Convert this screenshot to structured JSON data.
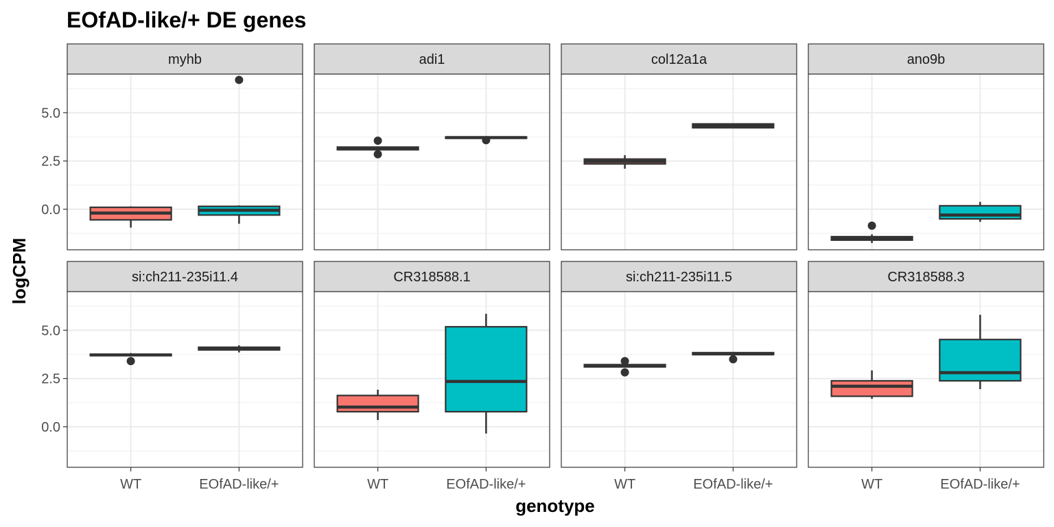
{
  "chart_data": {
    "type": "boxplot",
    "title": "EOfAD-like/+ DE genes",
    "xlabel": "genotype",
    "ylabel": "logCPM",
    "categories": [
      "WT",
      "EOfAD-like/+"
    ],
    "ylim": [
      -2.1,
      7.0
    ],
    "yticks": [
      0.0,
      2.5,
      5.0
    ],
    "ytick_labels": [
      "0.0",
      "2.5",
      "5.0"
    ],
    "grid": true,
    "legend": "none",
    "facet_grid": {
      "rows": 2,
      "cols": 4
    },
    "fill_colors": {
      "WT": "#F8766D",
      "EOfAD-like/+": "#00BFC4"
    },
    "panels": [
      {
        "gene": "myhb",
        "boxes": [
          {
            "group": "WT",
            "lower_whisker": -0.95,
            "q1": -0.55,
            "median": -0.2,
            "q3": 0.1,
            "upper_whisker": 0.15,
            "outliers": []
          },
          {
            "group": "EOfAD-like/+",
            "lower_whisker": -0.75,
            "q1": -0.3,
            "median": -0.05,
            "q3": 0.15,
            "upper_whisker": 0.2,
            "outliers": [
              6.7
            ]
          }
        ]
      },
      {
        "gene": "adi1",
        "boxes": [
          {
            "group": "WT",
            "lower_whisker": 3.05,
            "q1": 3.08,
            "median": 3.15,
            "q3": 3.22,
            "upper_whisker": 3.25,
            "outliers": [
              3.55,
              2.85
            ]
          },
          {
            "group": "EOfAD-like/+",
            "lower_whisker": 3.65,
            "q1": 3.68,
            "median": 3.71,
            "q3": 3.74,
            "upper_whisker": 3.76,
            "outliers": [
              3.58
            ]
          }
        ]
      },
      {
        "gene": "col12a1a",
        "boxes": [
          {
            "group": "WT",
            "lower_whisker": 2.1,
            "q1": 2.35,
            "median": 2.48,
            "q3": 2.6,
            "upper_whisker": 2.8,
            "outliers": []
          },
          {
            "group": "EOfAD-like/+",
            "lower_whisker": 4.2,
            "q1": 4.22,
            "median": 4.32,
            "q3": 4.42,
            "upper_whisker": 4.45,
            "outliers": []
          }
        ]
      },
      {
        "gene": "ano9b",
        "boxes": [
          {
            "group": "WT",
            "lower_whisker": -1.75,
            "q1": -1.6,
            "median": -1.5,
            "q3": -1.42,
            "upper_whisker": -1.3,
            "outliers": [
              -0.85
            ]
          },
          {
            "group": "EOfAD-like/+",
            "lower_whisker": -0.65,
            "q1": -0.5,
            "median": -0.3,
            "q3": 0.18,
            "upper_whisker": 0.38,
            "outliers": []
          }
        ]
      },
      {
        "gene": "si:ch211-235i11.4",
        "boxes": [
          {
            "group": "WT",
            "lower_whisker": 3.65,
            "q1": 3.68,
            "median": 3.72,
            "q3": 3.76,
            "upper_whisker": 3.82,
            "outliers": [
              3.4
            ]
          },
          {
            "group": "EOfAD-like/+",
            "lower_whisker": 3.85,
            "q1": 3.98,
            "median": 4.04,
            "q3": 4.12,
            "upper_whisker": 4.22,
            "outliers": []
          }
        ]
      },
      {
        "gene": "CR318588.1",
        "boxes": [
          {
            "group": "WT",
            "lower_whisker": 0.35,
            "q1": 0.78,
            "median": 1.02,
            "q3": 1.62,
            "upper_whisker": 1.92,
            "outliers": []
          },
          {
            "group": "EOfAD-like/+",
            "lower_whisker": -0.35,
            "q1": 0.78,
            "median": 2.35,
            "q3": 5.18,
            "upper_whisker": 5.85,
            "outliers": []
          }
        ]
      },
      {
        "gene": "si:ch211-235i11.5",
        "boxes": [
          {
            "group": "WT",
            "lower_whisker": 3.08,
            "q1": 3.1,
            "median": 3.15,
            "q3": 3.22,
            "upper_whisker": 3.25,
            "outliers": [
              3.4,
              2.82
            ]
          },
          {
            "group": "EOfAD-like/+",
            "lower_whisker": 3.7,
            "q1": 3.74,
            "median": 3.78,
            "q3": 3.84,
            "upper_whisker": 3.88,
            "outliers": [
              3.5
            ]
          }
        ]
      },
      {
        "gene": "CR318588.3",
        "boxes": [
          {
            "group": "WT",
            "lower_whisker": 1.45,
            "q1": 1.58,
            "median": 2.1,
            "q3": 2.38,
            "upper_whisker": 2.92,
            "outliers": []
          },
          {
            "group": "EOfAD-like/+",
            "lower_whisker": 1.95,
            "q1": 2.38,
            "median": 2.8,
            "q3": 4.52,
            "upper_whisker": 5.8,
            "outliers": []
          }
        ]
      }
    ]
  }
}
